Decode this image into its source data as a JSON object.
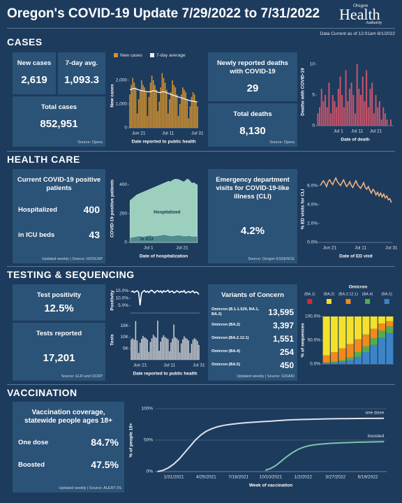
{
  "header": {
    "title": "Oregon's COVID-19 Update 7/29/2022 to 7/31/2022",
    "logo_top": "Oregon",
    "logo_main": "Health",
    "logo_bottom": "Authority",
    "data_current": "Data Current as of 12:01am 8/1/2022"
  },
  "cases": {
    "heading": "CASES",
    "new_cases_label": "New cases",
    "new_cases": "2,619",
    "avg_label": "7-day avg.",
    "avg": "1,093.3",
    "total_label": "Total cases",
    "total": "852,951",
    "source": "Source: Opera",
    "deaths_label": "Newly reported deaths with COVID-19",
    "deaths": "29",
    "total_deaths_label": "Total deaths",
    "total_deaths": "8,130",
    "deaths_source": "Source: Opera"
  },
  "health_care": {
    "heading": "HEALTH CARE",
    "patients_label": "Current COVID-19 positive patients",
    "hospitalized_label": "Hospitalized",
    "hospitalized": "400",
    "icu_label": "in ICU beds",
    "icu": "43",
    "source": "Updated weekly | Source: HOSCAP",
    "ed_label": "Emergency department visits for COVID-19-like illness (CLI)",
    "ed": "4.2%",
    "ed_source": "Source: Oregon ESSENCE"
  },
  "testing": {
    "heading": "TESTING & SEQUENCING",
    "positivity_label": "Test positivity",
    "positivity": "12.5%",
    "tests_label": "Tests reported",
    "tests": "17,201",
    "source": "Source: ELR and OCRP",
    "variants_title": "Variants of Concern",
    "variants": [
      {
        "name": "Omicron (B.1.1.529, BA.1, BA.3)",
        "value": "13,595"
      },
      {
        "name": "Omicron (BA.2)",
        "value": "3,397"
      },
      {
        "name": "Omicron (BA.2.12.1)",
        "value": "1,551"
      },
      {
        "name": "Omicron (BA.4)",
        "value": "254"
      },
      {
        "name": "Omicron (BA.5)",
        "value": "450"
      }
    ],
    "variants_source": "Updated weekly | Source: GISAID"
  },
  "vaccination": {
    "heading": "VACCINATION",
    "coverage_label": "Vaccination coverage, statewide people ages 18+",
    "one_dose_label": "One dose",
    "one_dose": "84.7%",
    "boosted_label": "Boosted",
    "boosted": "47.5%",
    "source": "Updated weekly | Source: ALERT IIS"
  },
  "chart_data": [
    {
      "type": "bar_line",
      "y_label": "New cases",
      "x_label": "Date reported to public health",
      "ylim": [
        0,
        2700
      ],
      "yticks": [
        0,
        {
          "value": 1000,
          "label": "1,000"
        },
        {
          "value": 2000,
          "label": "2,000"
        }
      ],
      "categories": [
        null,
        null,
        null,
        null,
        null,
        null,
        "Jun 21",
        null,
        null,
        null,
        null,
        null,
        null,
        null,
        null,
        null,
        null,
        null,
        null,
        null,
        null,
        null,
        null,
        null,
        null,
        null,
        "Jul 11",
        null,
        null,
        null,
        null,
        null,
        null,
        null,
        null,
        null,
        null,
        null,
        null,
        null,
        null,
        null,
        null,
        null,
        null,
        null,
        "Jul 31"
      ],
      "series": [
        {
          "name": "New cases",
          "color": "#d4912c",
          "values": [
            1400,
            1800,
            2100,
            1900,
            1700,
            600,
            1200,
            1600,
            2000,
            1800,
            1700,
            1500,
            500,
            1300,
            1900,
            2200,
            2000,
            1800,
            1600,
            700,
            1100,
            1700,
            2300,
            2100,
            1900,
            1600,
            600,
            1200,
            1500,
            2000,
            1800,
            1700,
            1400,
            500,
            1000,
            1400,
            1700,
            1600,
            1500,
            1200,
            400,
            900,
            1300,
            1500,
            1400,
            1100,
            900
          ]
        },
        {
          "name": "7-day average",
          "color": "#e8eef5",
          "values": [
            1600,
            1620,
            1650,
            1660,
            1640,
            1620,
            1600,
            1580,
            1560,
            1550,
            1540,
            1530,
            1520,
            1510,
            1520,
            1540,
            1560,
            1550,
            1530,
            1500,
            1480,
            1490,
            1510,
            1520,
            1500,
            1480,
            1450,
            1430,
            1400,
            1380,
            1360,
            1340,
            1320,
            1300,
            1280,
            1260,
            1240,
            1220,
            1200,
            1180,
            1160,
            1140,
            1130,
            1120,
            1110,
            1100,
            1093
          ]
        }
      ]
    },
    {
      "type": "bar",
      "y_label": "Deaths with COVID-19",
      "x_label": "Date of death",
      "ylim": [
        0,
        11
      ],
      "yticks": [
        0,
        5,
        10
      ],
      "color": "#c9546a",
      "categories": [
        null,
        null,
        null,
        null,
        null,
        null,
        null,
        null,
        null,
        null,
        null,
        "Jul 1",
        null,
        null,
        null,
        null,
        null,
        null,
        null,
        null,
        null,
        "Jul 11",
        null,
        null,
        null,
        null,
        null,
        null,
        null,
        null,
        null,
        "Jul 21",
        null,
        null,
        null,
        null,
        null,
        null,
        null,
        null,
        null
      ],
      "values": [
        2,
        3,
        6,
        4,
        5,
        3,
        7,
        2,
        5,
        4,
        3,
        6,
        8,
        5,
        3,
        9,
        4,
        6,
        7,
        5,
        2,
        10,
        6,
        5,
        8,
        4,
        9,
        3,
        6,
        7,
        2,
        5,
        3,
        4,
        1,
        3,
        2,
        1,
        0,
        1,
        0
      ]
    },
    {
      "type": "area",
      "y_label": "COVID-19 positive patients",
      "x_label": "Date of hospitalization",
      "ylim": [
        0,
        470
      ],
      "yticks": [
        0,
        200,
        400
      ],
      "categories": [
        null,
        null,
        null,
        null,
        null,
        null,
        null,
        null,
        null,
        null,
        null,
        "Jul 1",
        null,
        null,
        null,
        null,
        null,
        null,
        null,
        null,
        null,
        null,
        null,
        null,
        null,
        null,
        null,
        null,
        null,
        null,
        null,
        "Jul 21",
        null,
        null,
        null,
        null,
        null,
        null,
        null,
        null,
        null
      ],
      "series": [
        {
          "name": "Hospitalized",
          "color": "#9ccfbd",
          "values": [
            290,
            300,
            310,
            320,
            330,
            335,
            340,
            345,
            350,
            355,
            360,
            365,
            370,
            375,
            380,
            385,
            390,
            395,
            400,
            405,
            410,
            415,
            420,
            425,
            420,
            430,
            435,
            440,
            438,
            436,
            430,
            425,
            420,
            430,
            440,
            435,
            420,
            410,
            415,
            405,
            400
          ]
        },
        {
          "name": "in ICU",
          "color": "#4f8c8e",
          "values": [
            35,
            36,
            38,
            40,
            42,
            45,
            44,
            43,
            42,
            44,
            46,
            48,
            50,
            47,
            45,
            44,
            46,
            48,
            50,
            52,
            55,
            53,
            50,
            48,
            47,
            45,
            46,
            48,
            50,
            52,
            49,
            47,
            45,
            44,
            46,
            48,
            45,
            43,
            42,
            44,
            43
          ]
        }
      ]
    },
    {
      "type": "line",
      "y_label": "% ED visits for CLI",
      "x_label": "Date of ED visit",
      "ylim": [
        0,
        7
      ],
      "yticks": [
        {
          "value": 0,
          "label": "0.0%"
        },
        {
          "value": 2,
          "label": "2.0%"
        },
        {
          "value": 4,
          "label": "4.0%"
        },
        {
          "value": 6,
          "label": "6.0%"
        }
      ],
      "color": "#f2b27a",
      "categories": [
        null,
        null,
        null,
        null,
        null,
        null,
        "Jun 21",
        null,
        null,
        null,
        null,
        null,
        null,
        null,
        null,
        null,
        null,
        null,
        null,
        null,
        null,
        null,
        null,
        null,
        null,
        null,
        "Jul 11",
        null,
        null,
        null,
        null,
        null,
        null,
        null,
        null,
        null,
        null,
        null,
        null,
        null,
        null,
        null,
        null,
        null,
        null,
        null,
        "Jul 31"
      ],
      "values": [
        6.0,
        6.3,
        6.5,
        6.2,
        5.9,
        6.4,
        6.6,
        6.3,
        6.1,
        6.5,
        6.8,
        6.4,
        6.2,
        6.0,
        6.3,
        6.6,
        6.2,
        5.9,
        6.1,
        6.4,
        6.0,
        5.8,
        6.2,
        6.5,
        6.1,
        5.9,
        5.7,
        6.0,
        6.3,
        5.8,
        5.6,
        5.9,
        5.5,
        5.2,
        5.6,
        5.4,
        5.0,
        5.3,
        4.9,
        5.2,
        4.8,
        5.1,
        4.7,
        4.9,
        4.5,
        4.6,
        4.2
      ]
    },
    {
      "type": "line",
      "y_label": "Positivity",
      "ylim": [
        0,
        17
      ],
      "yticks": [
        {
          "value": 5,
          "label": "5.0%"
        },
        {
          "value": 10,
          "label": "10.0%"
        },
        {
          "value": 15,
          "label": "15.0%"
        }
      ],
      "color": "#ffffff",
      "values": [
        14.2,
        14.8,
        13.9,
        14.5,
        15.0,
        14.1,
        5.2,
        13.5,
        14.6,
        15.2,
        14.0,
        14.7,
        13.8,
        14.9,
        15.3,
        14.4,
        13.6,
        14.8,
        15.1,
        14.2,
        14.9,
        13.7,
        15.0,
        14.3,
        14.6,
        15.4,
        13.9,
        14.5,
        14.8,
        13.6,
        14.1,
        15.0,
        14.4,
        13.8,
        14.7,
        14.2,
        15.1,
        13.5,
        14.0,
        14.6,
        13.8,
        14.3,
        14.9,
        13.6,
        14.1,
        13.9,
        12.5
      ]
    },
    {
      "type": "bar",
      "y_label": "Tests",
      "x_label": "Date reported to public health",
      "ylim": [
        0,
        17500
      ],
      "yticks": [
        {
          "value": 5000,
          "label": "5K"
        },
        {
          "value": 10000,
          "label": "10K"
        },
        {
          "value": 15000,
          "label": "15K"
        }
      ],
      "color": "#c9cbcf",
      "categories": [
        null,
        null,
        null,
        null,
        null,
        null,
        "Jun 21",
        null,
        null,
        null,
        null,
        null,
        null,
        null,
        null,
        null,
        null,
        null,
        null,
        null,
        null,
        null,
        null,
        null,
        null,
        null,
        "Jul 11",
        null,
        null,
        null,
        null,
        null,
        null,
        null,
        null,
        null,
        null,
        null,
        null,
        null,
        null,
        null,
        null,
        null,
        null,
        null,
        "Jul 31"
      ],
      "values": [
        9000,
        9500,
        8800,
        17000,
        8500,
        3000,
        7500,
        9200,
        10500,
        9800,
        9600,
        8900,
        3500,
        7800,
        9400,
        11000,
        10200,
        9700,
        17200,
        4000,
        8000,
        9800,
        10800,
        10000,
        9500,
        9100,
        3800,
        7600,
        9300,
        15500,
        9900,
        9400,
        8700,
        3200,
        7200,
        9000,
        10300,
        9600,
        9200,
        8500,
        3000,
        7000,
        8800,
        9500,
        9000,
        8200,
        6500
      ]
    },
    {
      "type": "stacked_bar",
      "y_label": "% of sequences",
      "legend_title": "Omicron",
      "ylim": [
        0,
        100
      ],
      "yticks": [
        {
          "value": 0,
          "label": "0.0%"
        },
        {
          "value": 50,
          "label": "50.0%"
        },
        {
          "value": 100,
          "label": "100.0%"
        }
      ],
      "categories": [
        null,
        null,
        null,
        null,
        null,
        null,
        null,
        null,
        null
      ],
      "series": [
        {
          "name": "(BA.1)",
          "color": "#d8282f",
          "values": [
            0,
            0,
            0,
            0,
            0,
            0,
            0,
            0,
            0
          ]
        },
        {
          "name": "(BA.2)",
          "color": "#f3e12b",
          "values": [
            82,
            75,
            67,
            58,
            48,
            38,
            26,
            15,
            10
          ]
        },
        {
          "name": "(BA.2.12.1)",
          "color": "#f08a1c",
          "values": [
            15,
            20,
            25,
            28,
            27,
            25,
            20,
            15,
            11
          ]
        },
        {
          "name": "(BA.4)",
          "color": "#55ad4a",
          "values": [
            1,
            2,
            3,
            6,
            10,
            12,
            14,
            15,
            14
          ]
        },
        {
          "name": "(BA.5)",
          "color": "#3b84c6",
          "values": [
            2,
            3,
            5,
            8,
            15,
            25,
            40,
            55,
            65
          ]
        }
      ]
    },
    {
      "type": "line",
      "y_label": "% of people 18+",
      "x_label": "Week of vaccination",
      "ylim": [
        0,
        100
      ],
      "yticks": [
        {
          "value": 0,
          "label": "0%"
        },
        {
          "value": 50,
          "label": "50%"
        },
        {
          "value": 100,
          "label": "100%"
        }
      ],
      "grid": true,
      "categories": [
        null,
        null,
        null,
        "1/31/2021",
        null,
        null,
        null,
        null,
        null,
        "4/25/2021",
        null,
        null,
        null,
        null,
        null,
        "7/18/2021",
        null,
        null,
        null,
        null,
        null,
        "10/10/2021",
        null,
        null,
        null,
        null,
        null,
        "1/2/2022",
        null,
        null,
        null,
        null,
        null,
        "3/27/2022",
        null,
        null,
        null,
        null,
        null,
        "6/19/2022",
        null,
        null,
        null
      ],
      "series": [
        {
          "name": "one dose",
          "color": "#dfe3ea",
          "values": [
            0,
            2,
            6,
            12,
            20,
            30,
            40,
            50,
            58,
            64,
            68,
            71,
            73,
            74.5,
            75.5,
            76.5,
            77.3,
            78,
            78.6,
            79.2,
            79.7,
            80.2,
            80.8,
            81.4,
            81.9,
            82.3,
            82.6,
            82.9,
            83.1,
            83.3,
            83.5,
            83.7,
            83.9,
            84,
            84.1,
            84.2,
            84.3,
            84.4,
            84.5,
            84.55,
            84.6,
            84.65,
            84.7
          ]
        },
        {
          "name": "boosted",
          "color": "#7cc6a9",
          "values": [
            null,
            null,
            null,
            null,
            null,
            null,
            null,
            null,
            null,
            null,
            null,
            null,
            null,
            null,
            null,
            null,
            null,
            null,
            null,
            null,
            2,
            5,
            10,
            17,
            24,
            30,
            35,
            38.5,
            41,
            42.5,
            43.5,
            44.2,
            44.8,
            45.3,
            45.7,
            46,
            46.3,
            46.6,
            46.8,
            47,
            47.2,
            47.4,
            47.5
          ]
        }
      ]
    }
  ]
}
